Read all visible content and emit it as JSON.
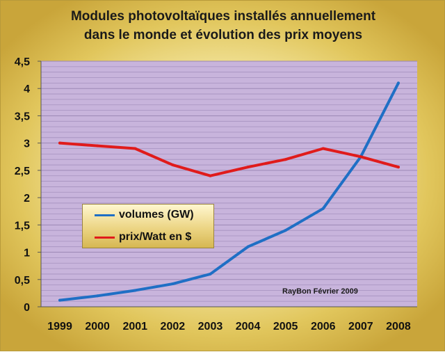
{
  "chart_data": {
    "type": "line",
    "title": [
      "Modules photovoltaïques installés annuellement",
      "dans le monde et évolution des prix moyens"
    ],
    "categories": [
      "1999",
      "2000",
      "2001",
      "2002",
      "2003",
      "2004",
      "2005",
      "2006",
      "2007",
      "2008"
    ],
    "series": [
      {
        "name": "volumes (GW)",
        "color": "#1f6fc5",
        "values": [
          0.12,
          0.2,
          0.3,
          0.42,
          0.6,
          1.1,
          1.4,
          1.8,
          2.75,
          4.1
        ]
      },
      {
        "name": "prix/Watt en $",
        "color": "#e01b1b",
        "values": [
          3.0,
          2.95,
          2.9,
          2.6,
          2.4,
          2.56,
          2.7,
          2.9,
          2.75,
          2.56
        ]
      }
    ],
    "y_ticks": [
      "0",
      "0,5",
      "1",
      "1,5",
      "2",
      "2,5",
      "3",
      "3,5",
      "4",
      "4,5"
    ],
    "ylim": [
      0,
      4.5
    ],
    "xlabel": "",
    "ylabel": "",
    "grid": true,
    "legend_position": "center-left",
    "annotation": "RayBon Février 2009",
    "plot_background": "#c8b4dc",
    "gridline_color": "#9a86b4"
  }
}
